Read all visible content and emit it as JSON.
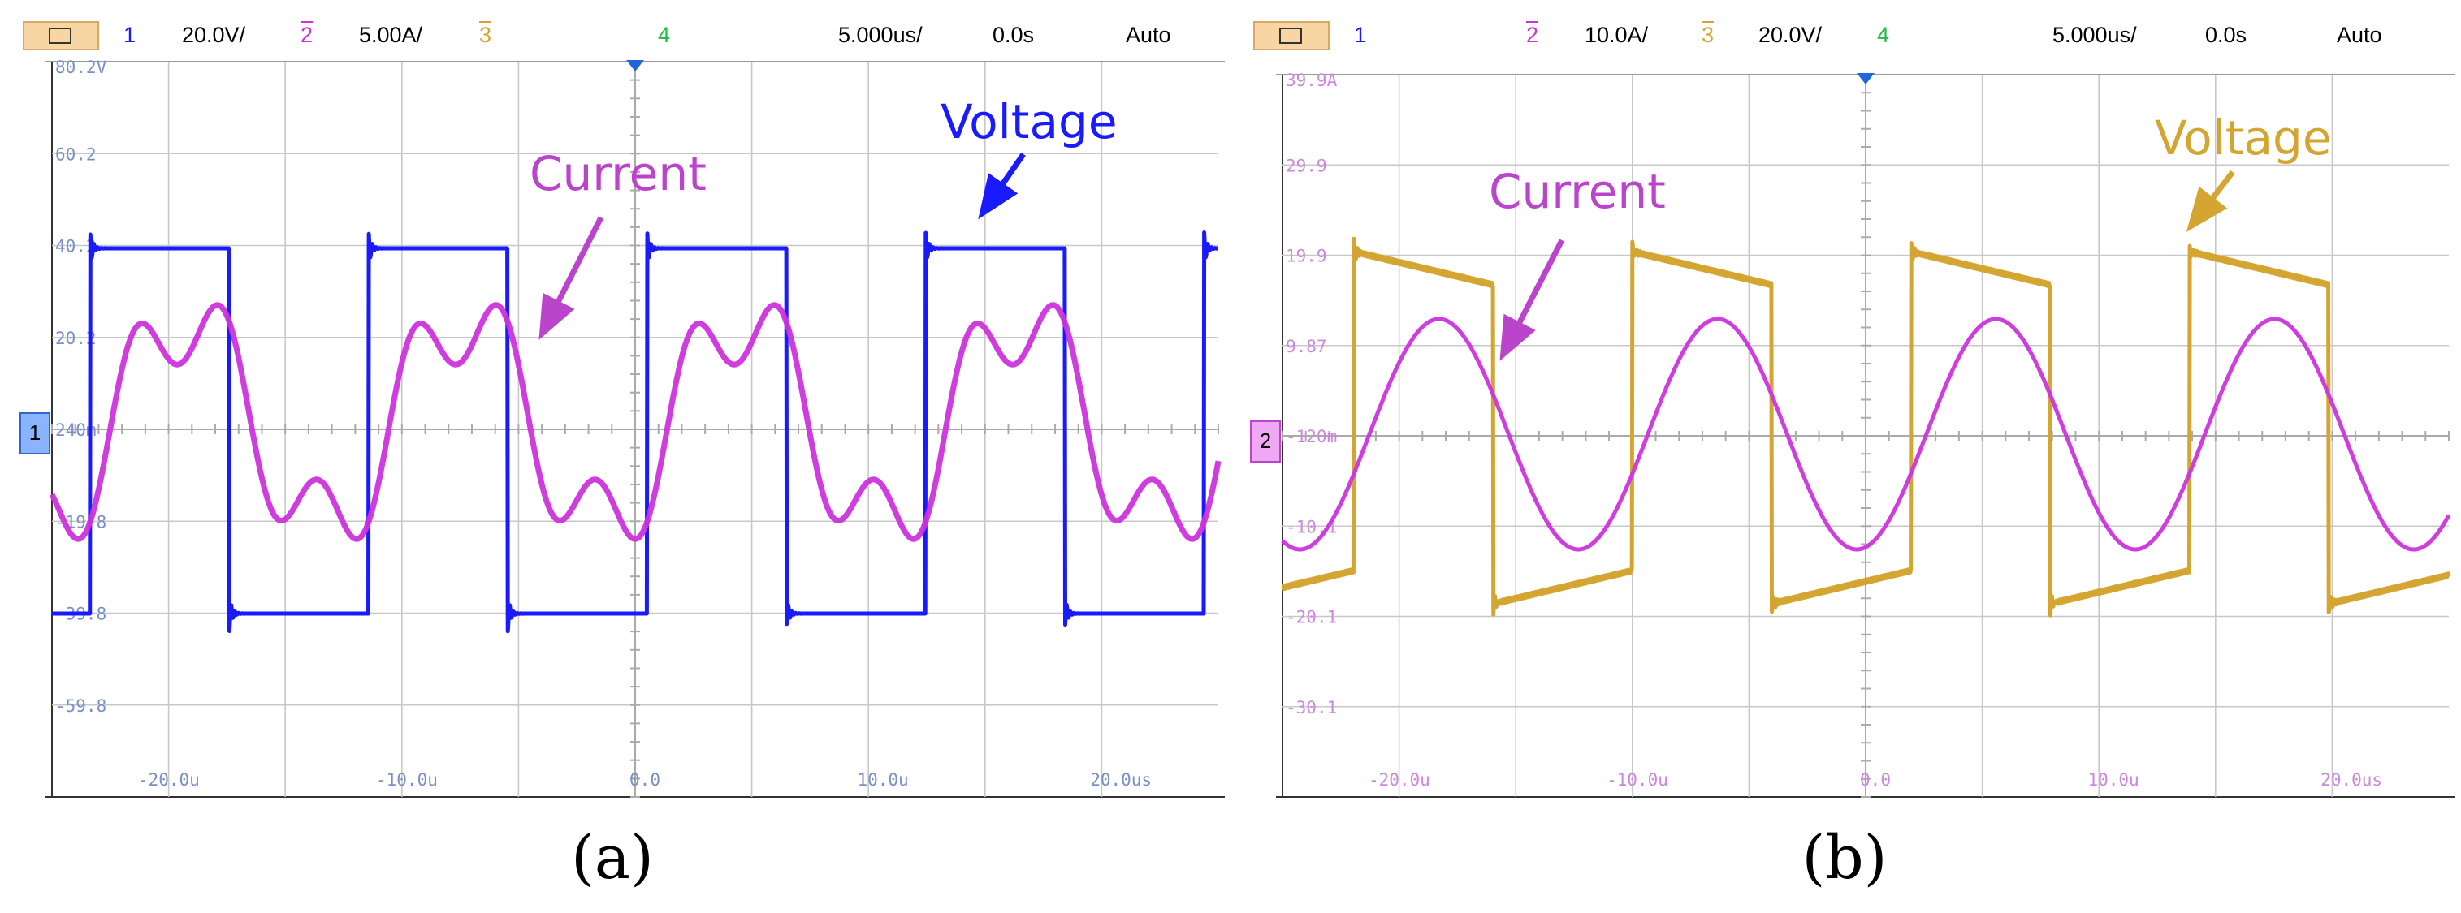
{
  "chart_data": [
    {
      "type": "line",
      "caption": "(a)",
      "toolbar": {
        "ch1": "1",
        "ch1_scale": "20.0V/",
        "ch2": "2",
        "ch2_scale": "5.00A/",
        "ch3": "3",
        "ch4": "4",
        "timebase": "5.000us/",
        "delay": "0.0s",
        "trigger": "Auto"
      },
      "x_range": [
        -24.5,
        24.5
      ],
      "x_ticks": [
        -20,
        -10,
        0,
        10,
        20
      ],
      "x_tick_labels": [
        "-20.0u",
        "-10.0u",
        "0.0",
        "10.0u",
        "20.0us"
      ],
      "y_tick_labels": [
        "80.2V",
        "60.2",
        "40.2",
        "20.2",
        "240m",
        "-19.8",
        "-39.8",
        "-59.8"
      ],
      "ground_marker": "1",
      "grid": true,
      "series": [
        {
          "name": "Voltage",
          "color": "#1a1aff",
          "waveform": "square",
          "period_us": 11.7,
          "rise_us": [
            -22.9,
            -11.2,
            0.5,
            12.2,
            23.9
          ],
          "high": 37.0,
          "low": -39.8,
          "y_range": [
            -79.8,
            80.2
          ]
        },
        {
          "name": "Current",
          "color": "#cc33dd",
          "waveform": "distorted-sine",
          "period_us": 11.7,
          "peak": 4.6,
          "trough": -5.6,
          "y_range": [
            -10.4,
            8.8
          ]
        }
      ],
      "annotations": [
        {
          "text": "Voltage",
          "color": "#1a1aff"
        },
        {
          "text": "Current",
          "color": "#bb44cc"
        }
      ]
    },
    {
      "type": "line",
      "caption": "(b)",
      "toolbar": {
        "ch1": "1",
        "ch2": "2",
        "ch2_scale": "10.0A/",
        "ch3": "3",
        "ch3_scale": "20.0V/",
        "ch4": "4",
        "timebase": "5.000us/",
        "delay": "0.0s",
        "trigger": "Auto"
      },
      "x_range": [
        -24.5,
        24.5
      ],
      "x_ticks": [
        -20,
        -10,
        0,
        10,
        20
      ],
      "x_tick_labels": [
        "-20.0u",
        "-10.0u",
        "0.0",
        "10.0u",
        "20.0us"
      ],
      "y_tick_labels": [
        "39.9A",
        "29.9",
        "19.9",
        "9.87",
        "-120m",
        "-10.1",
        "-20.1",
        "-30.1"
      ],
      "ground_marker": "2",
      "grid": true,
      "series": [
        {
          "name": "Voltage",
          "color": "#d4a631",
          "waveform": "square",
          "period_us": 11.7,
          "rise_us": [
            -21.5,
            -9.8,
            1.9,
            13.6
          ],
          "high": 19.0,
          "low": -20.1
        },
        {
          "name": "Current",
          "color": "#cc33dd",
          "waveform": "sine",
          "period_us": 11.7,
          "amplitude": 10.0
        }
      ],
      "annotations": [
        {
          "text": "Voltage",
          "color": "#d4a631"
        },
        {
          "text": "Current",
          "color": "#bb44cc"
        }
      ]
    }
  ]
}
